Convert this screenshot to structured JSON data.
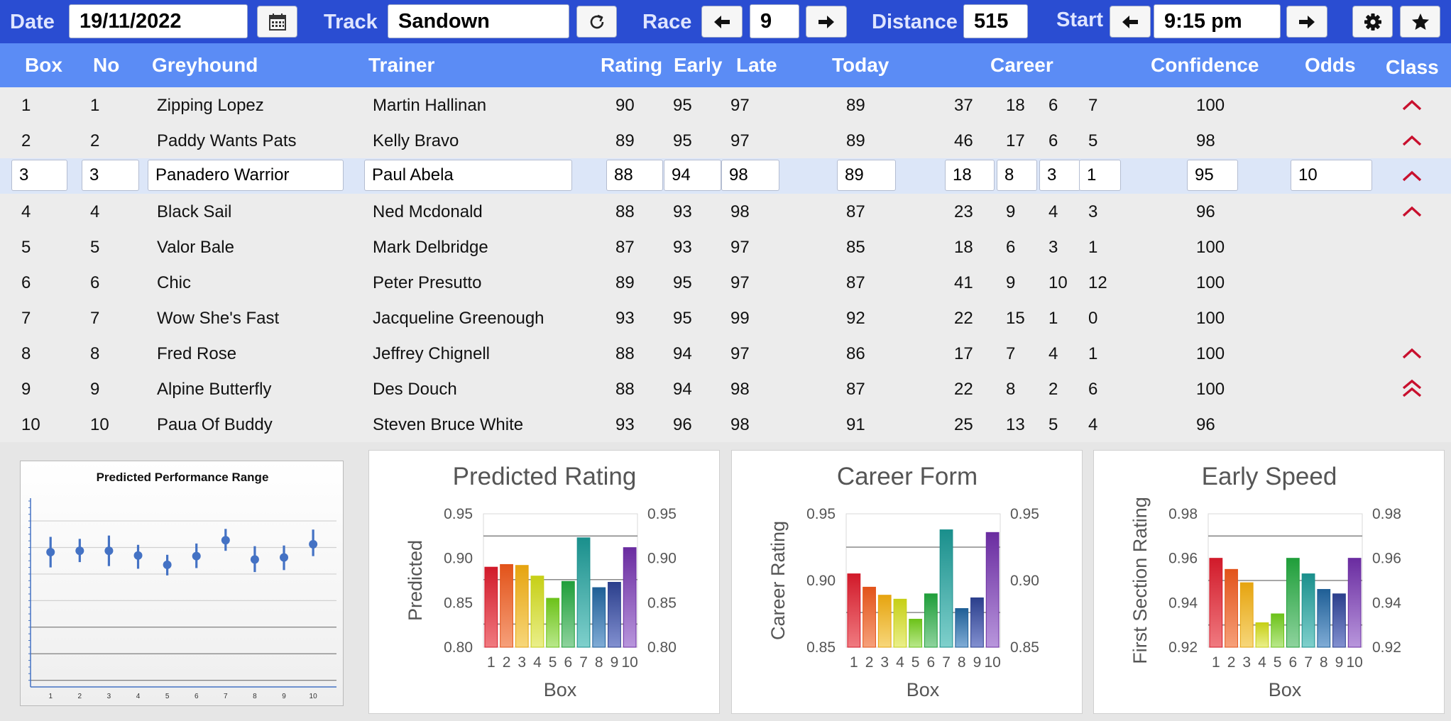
{
  "toolbar": {
    "date_label": "Date",
    "date_value": "19/11/2022",
    "track_label": "Track",
    "track_value": "Sandown",
    "race_label": "Race",
    "race_value": "9",
    "distance_label": "Distance",
    "distance_value": "515",
    "start_label": "Start",
    "start_value": "9:15 pm",
    "icons": [
      "calendar-icon",
      "refresh-icon",
      "arrow-left-icon",
      "arrow-right-icon",
      "gear-icon",
      "star-icon"
    ]
  },
  "table": {
    "headers": [
      "Box",
      "No",
      "Greyhound",
      "Trainer",
      "Rating",
      "Early",
      "Late",
      "Today",
      "Career",
      "Confidence",
      "Odds",
      "Class"
    ],
    "selected_row": 2,
    "rows": [
      {
        "box": "1",
        "no": "1",
        "greyhound": "Zipping Lopez",
        "trainer": "Martin Hallinan",
        "rating": "90",
        "early": "95",
        "late": "97",
        "today": "89",
        "c1": "37",
        "c2": "18",
        "c3": "6",
        "c4": "7",
        "confidence": "100",
        "odds": "",
        "class": "up-single"
      },
      {
        "box": "2",
        "no": "2",
        "greyhound": "Paddy Wants Pats",
        "trainer": "Kelly Bravo",
        "rating": "89",
        "early": "95",
        "late": "97",
        "today": "89",
        "c1": "46",
        "c2": "17",
        "c3": "6",
        "c4": "5",
        "confidence": "98",
        "odds": "",
        "class": "up-single"
      },
      {
        "box": "3",
        "no": "3",
        "greyhound": "Panadero Warrior",
        "trainer": "Paul Abela",
        "rating": "88",
        "early": "94",
        "late": "98",
        "today": "89",
        "c1": "18",
        "c2": "8",
        "c3": "3",
        "c4": "1",
        "confidence": "95",
        "odds": "10",
        "class": "up-single"
      },
      {
        "box": "4",
        "no": "4",
        "greyhound": "Black Sail",
        "trainer": "Ned Mcdonald",
        "rating": "88",
        "early": "93",
        "late": "98",
        "today": "87",
        "c1": "23",
        "c2": "9",
        "c3": "4",
        "c4": "3",
        "confidence": "96",
        "odds": "",
        "class": "up-single"
      },
      {
        "box": "5",
        "no": "5",
        "greyhound": "Valor Bale",
        "trainer": "Mark Delbridge",
        "rating": "87",
        "early": "93",
        "late": "97",
        "today": "85",
        "c1": "18",
        "c2": "6",
        "c3": "3",
        "c4": "1",
        "confidence": "100",
        "odds": "",
        "class": ""
      },
      {
        "box": "6",
        "no": "6",
        "greyhound": "Chic",
        "trainer": "Peter Presutto",
        "rating": "89",
        "early": "95",
        "late": "97",
        "today": "87",
        "c1": "41",
        "c2": "9",
        "c3": "10",
        "c4": "12",
        "confidence": "100",
        "odds": "",
        "class": ""
      },
      {
        "box": "7",
        "no": "7",
        "greyhound": "Wow She's Fast",
        "trainer": "Jacqueline Greenough",
        "rating": "93",
        "early": "95",
        "late": "99",
        "today": "92",
        "c1": "22",
        "c2": "15",
        "c3": "1",
        "c4": "0",
        "confidence": "100",
        "odds": "",
        "class": ""
      },
      {
        "box": "8",
        "no": "8",
        "greyhound": "Fred Rose",
        "trainer": "Jeffrey Chignell",
        "rating": "88",
        "early": "94",
        "late": "97",
        "today": "86",
        "c1": "17",
        "c2": "7",
        "c3": "4",
        "c4": "1",
        "confidence": "100",
        "odds": "",
        "class": "up-single"
      },
      {
        "box": "9",
        "no": "9",
        "greyhound": "Alpine Butterfly",
        "trainer": "Des Douch",
        "rating": "88",
        "early": "94",
        "late": "98",
        "today": "87",
        "c1": "22",
        "c2": "8",
        "c3": "2",
        "c4": "6",
        "confidence": "100",
        "odds": "",
        "class": "up-double"
      },
      {
        "box": "10",
        "no": "10",
        "greyhound": "Paua Of Buddy",
        "trainer": "Steven Bruce White",
        "rating": "93",
        "early": "96",
        "late": "98",
        "today": "91",
        "c1": "25",
        "c2": "13",
        "c3": "5",
        "c4": "4",
        "confidence": "96",
        "odds": "",
        "class": ""
      }
    ],
    "class_color": "#c8102e"
  },
  "chart_data": [
    {
      "type": "scatter",
      "title": "Predicted Performance Range",
      "x": [
        1,
        2,
        3,
        4,
        5,
        6,
        7,
        8,
        9,
        10
      ],
      "y": [
        0.893,
        0.895,
        0.895,
        0.888,
        0.874,
        0.887,
        0.911,
        0.882,
        0.885,
        0.905
      ],
      "y_low": [
        0.87,
        0.878,
        0.872,
        0.868,
        0.858,
        0.869,
        0.895,
        0.863,
        0.866,
        0.887
      ],
      "y_high": [
        0.916,
        0.913,
        0.918,
        0.904,
        0.889,
        0.906,
        0.928,
        0.902,
        0.903,
        0.927
      ],
      "ylim": [
        0.69,
        0.97
      ],
      "x_tick_labels": [
        "1",
        "2",
        "3",
        "4",
        "5",
        "6",
        "7",
        "8",
        "9",
        "10"
      ],
      "grid": true,
      "color": "#4472c4"
    },
    {
      "type": "bar",
      "title": "Predicted Rating",
      "categories": [
        "1",
        "2",
        "3",
        "4",
        "5",
        "6",
        "7",
        "8",
        "9",
        "10"
      ],
      "values": [
        0.89,
        0.893,
        0.892,
        0.88,
        0.855,
        0.874,
        0.923,
        0.867,
        0.873,
        0.912
      ],
      "xlabel": "Box",
      "ylabel": "Predicted",
      "ylim": [
        0.8,
        0.95
      ],
      "y_ticks": [
        "0.80",
        "0.85",
        "0.90",
        "0.95"
      ],
      "reference_lines": [
        0.925,
        0.876,
        0.826
      ]
    },
    {
      "type": "bar",
      "title": "Career Form",
      "categories": [
        "1",
        "2",
        "3",
        "4",
        "5",
        "6",
        "7",
        "8",
        "9",
        "10"
      ],
      "values": [
        0.905,
        0.895,
        0.889,
        0.886,
        0.871,
        0.89,
        0.938,
        0.879,
        0.887,
        0.936
      ],
      "xlabel": "Box",
      "ylabel": "Career Rating",
      "ylim": [
        0.85,
        0.95
      ],
      "y_ticks": [
        "0.85",
        "0.90",
        "0.95"
      ],
      "reference_lines": [
        0.925,
        0.876
      ]
    },
    {
      "type": "bar",
      "title": "Early Speed",
      "categories": [
        "1",
        "2",
        "3",
        "4",
        "5",
        "6",
        "7",
        "8",
        "9",
        "10"
      ],
      "values": [
        0.96,
        0.955,
        0.949,
        0.931,
        0.935,
        0.96,
        0.953,
        0.946,
        0.944,
        0.96
      ],
      "xlabel": "Box",
      "ylabel": "First Section Rating",
      "ylim": [
        0.92,
        0.98
      ],
      "y_ticks": [
        "0.92",
        "0.94",
        "0.96",
        "0.98"
      ],
      "reference_lines": [
        0.97,
        0.95,
        0.93
      ]
    }
  ]
}
